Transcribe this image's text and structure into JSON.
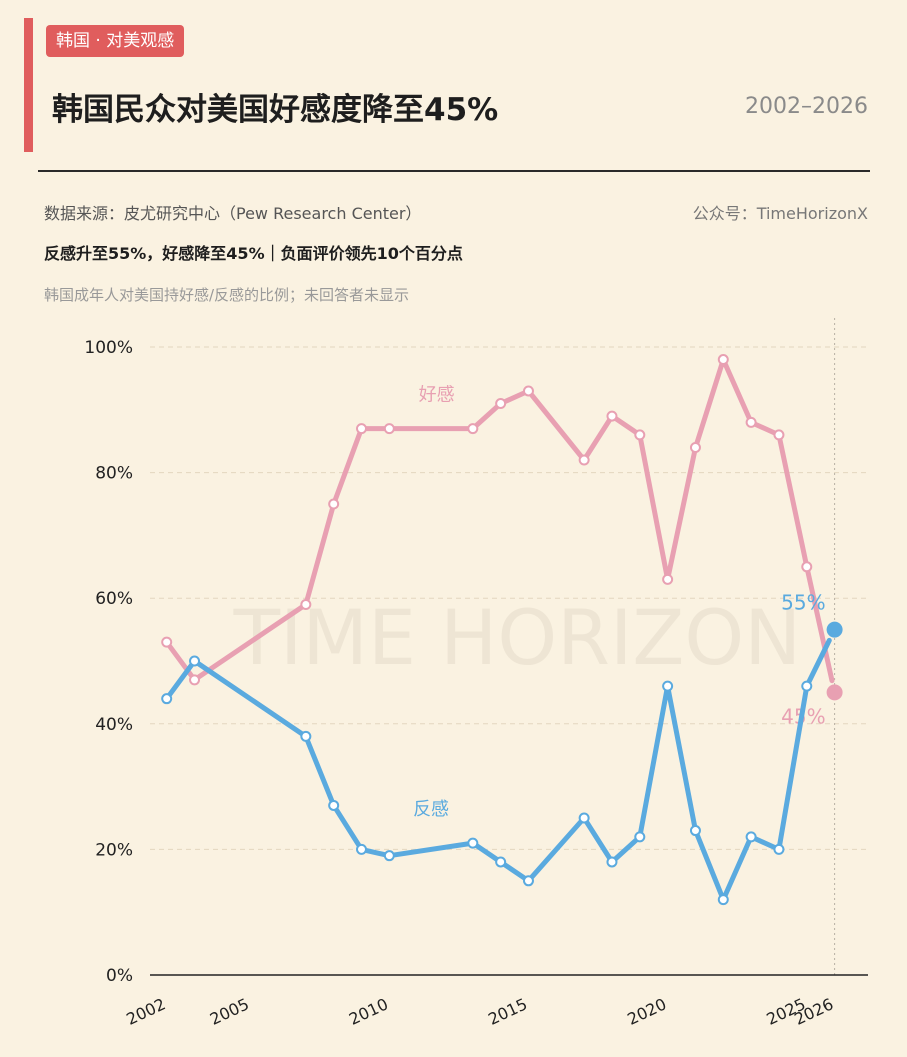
{
  "header": {
    "tag": "韩国 · 对美观感",
    "title": "韩国民众对美国好感度降至45%",
    "years": "2002–2026"
  },
  "meta": {
    "source": "数据来源：皮尤研究中心（Pew Research Center）",
    "account": "公众号：TimeHorizonX",
    "headline": "反感升至55%，好感降至45%｜负面评价领先10个百分点",
    "note": "韩国成年人对美国持好感/反感的比例；未回答者未显示"
  },
  "watermark": "TIME HORIZON",
  "chart_data": {
    "type": "line",
    "xlim": [
      2001.4,
      2027.2
    ],
    "ylim": [
      0,
      100
    ],
    "yticks": [
      0,
      20,
      40,
      60,
      80,
      100
    ],
    "ytick_labels": [
      "0%",
      "20%",
      "40%",
      "60%",
      "80%",
      "100%"
    ],
    "xticks": [
      2002,
      2005,
      2010,
      2015,
      2020,
      2025,
      2026
    ],
    "xtick_labels": [
      "2002",
      "2005",
      "2010",
      "2015",
      "2020",
      "2025",
      "2026"
    ],
    "grid": true,
    "series": [
      {
        "name": "好感",
        "color": "#e8a0b2",
        "x": [
          2002,
          2003,
          2007,
          2008,
          2009,
          2010,
          2013,
          2014,
          2015,
          2017,
          2018,
          2019,
          2020,
          2021,
          2022,
          2023,
          2024,
          2025,
          2026
        ],
        "y": [
          53,
          47,
          59,
          75,
          87,
          87,
          87,
          91,
          93,
          82,
          89,
          86,
          63,
          84,
          98,
          88,
          86,
          65,
          45
        ],
        "label_x": 2011.7,
        "label_y": 91.5,
        "end_label": "45%"
      },
      {
        "name": "反感",
        "color": "#5aaadf",
        "x": [
          2002,
          2003,
          2007,
          2008,
          2009,
          2010,
          2013,
          2014,
          2015,
          2017,
          2018,
          2019,
          2020,
          2021,
          2022,
          2023,
          2024,
          2025,
          2026
        ],
        "y": [
          44,
          50,
          38,
          27,
          20,
          19,
          21,
          18,
          15,
          25,
          18,
          22,
          46,
          23,
          12,
          22,
          20,
          46,
          55
        ],
        "label_x": 2011.5,
        "label_y": 25.5,
        "end_label": "55%"
      }
    ]
  }
}
